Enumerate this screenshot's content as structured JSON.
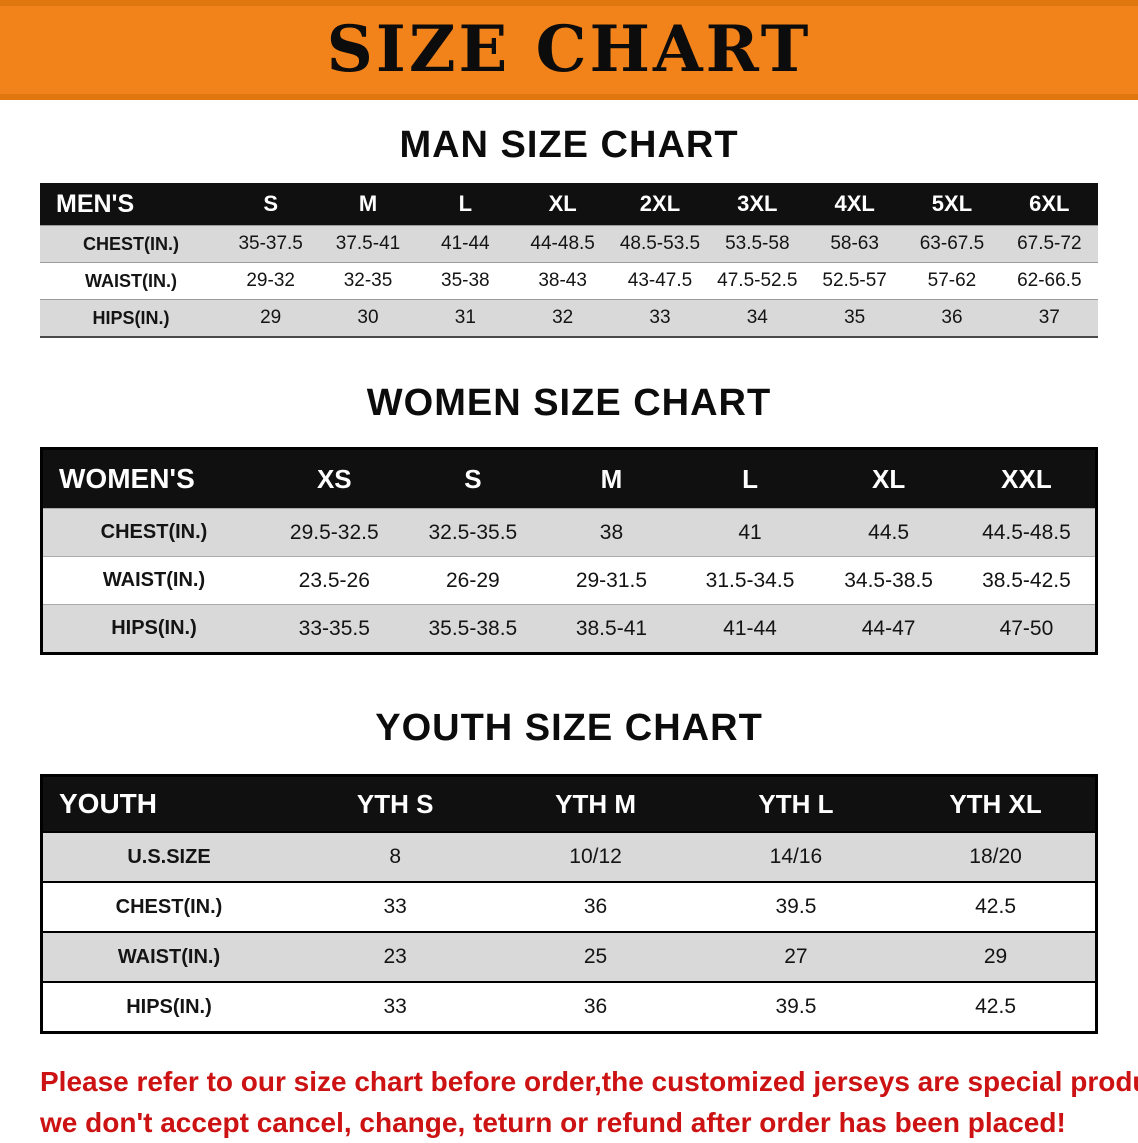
{
  "banner": {
    "title": "SIZE CHART"
  },
  "colors": {
    "banner_bg": "#f2821a",
    "banner_border": "#e0760e",
    "table_header_bg": "#101010",
    "row_stripe": "#d9d9d9",
    "footer_text": "#cc1212"
  },
  "sections": {
    "men": {
      "heading": "MAN SIZE CHART",
      "table": {
        "header": [
          "MEN'S",
          "S",
          "M",
          "L",
          "XL",
          "2XL",
          "3XL",
          "4XL",
          "5XL",
          "6XL"
        ],
        "rows": [
          [
            "CHEST(IN.)",
            "35-37.5",
            "37.5-41",
            "41-44",
            "44-48.5",
            "48.5-53.5",
            "53.5-58",
            "58-63",
            "63-67.5",
            "67.5-72"
          ],
          [
            "WAIST(IN.)",
            "29-32",
            "32-35",
            "35-38",
            "38-43",
            "43-47.5",
            "47.5-52.5",
            "52.5-57",
            "57-62",
            "62-66.5"
          ],
          [
            "HIPS(IN.)",
            "29",
            "30",
            "31",
            "32",
            "33",
            "34",
            "35",
            "36",
            "37"
          ]
        ]
      }
    },
    "women": {
      "heading": "WOMEN SIZE CHART",
      "table": {
        "header": [
          "WOMEN'S",
          "XS",
          "S",
          "M",
          "L",
          "XL",
          "XXL"
        ],
        "rows": [
          [
            "CHEST(IN.)",
            "29.5-32.5",
            "32.5-35.5",
            "38",
            "41",
            "44.5",
            "44.5-48.5"
          ],
          [
            "WAIST(IN.)",
            "23.5-26",
            "26-29",
            "29-31.5",
            "31.5-34.5",
            "34.5-38.5",
            "38.5-42.5"
          ],
          [
            "HIPS(IN.)",
            "33-35.5",
            "35.5-38.5",
            "38.5-41",
            "41-44",
            "44-47",
            "47-50"
          ]
        ]
      }
    },
    "youth": {
      "heading": "YOUTH SIZE CHART",
      "table": {
        "header": [
          "YOUTH",
          "YTH S",
          "YTH M",
          "YTH L",
          "YTH XL"
        ],
        "rows": [
          [
            "U.S.SIZE",
            "8",
            "10/12",
            "14/16",
            "18/20"
          ],
          [
            "CHEST(IN.)",
            "33",
            "36",
            "39.5",
            "42.5"
          ],
          [
            "WAIST(IN.)",
            "23",
            "25",
            "27",
            "29"
          ],
          [
            "HIPS(IN.)",
            "33",
            "36",
            "39.5",
            "42.5"
          ]
        ]
      }
    }
  },
  "footer": {
    "line1": "Please refer to our size chart before order,the customized jerseys are special products,",
    "line2": "we don't accept cancel, change, teturn or refund after order has been placed!"
  }
}
